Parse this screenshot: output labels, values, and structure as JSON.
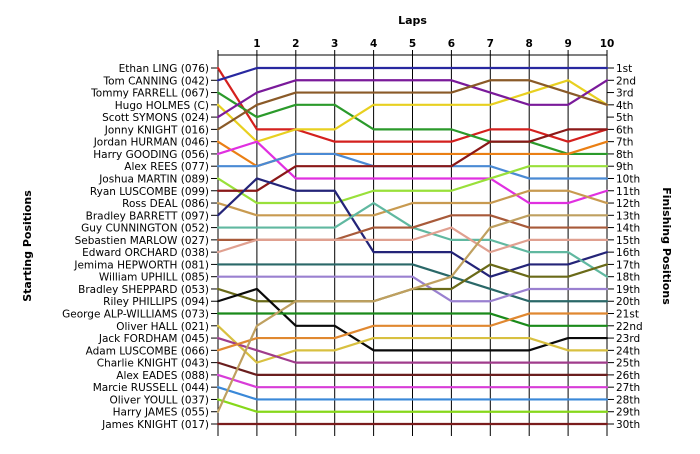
{
  "chart_data": {
    "type": "line",
    "title": "",
    "top_axis_label": "Laps",
    "left_axis_label": "Starting Positions",
    "right_axis_label": "Finishing Positions",
    "laps": [
      0,
      1,
      2,
      3,
      4,
      5,
      6,
      7,
      8,
      9,
      10
    ],
    "lap_tick_labels": [
      "1",
      "2",
      "3",
      "4",
      "5",
      "6",
      "7",
      "8",
      "9",
      "10"
    ],
    "finishing_labels": [
      "1st",
      "2nd",
      "3rd",
      "4th",
      "5th",
      "6th",
      "7th",
      "8th",
      "9th",
      "10th",
      "11th",
      "12th",
      "13th",
      "14th",
      "15th",
      "16th",
      "17th",
      "18th",
      "19th",
      "20th",
      "21st",
      "22nd",
      "23rd",
      "24th",
      "25th",
      "26th",
      "27th",
      "28th",
      "29th",
      "30th"
    ],
    "series": [
      {
        "name": "Ethan LING (076)",
        "color": "#d4201e",
        "positions": [
          1,
          6,
          6,
          7,
          7,
          7,
          7,
          6,
          6,
          7,
          6
        ]
      },
      {
        "name": "Tom CANNING (042)",
        "color": "#2828a0",
        "positions": [
          2,
          1,
          1,
          1,
          1,
          1,
          1,
          1,
          1,
          1,
          1
        ]
      },
      {
        "name": "Tommy FARRELL (067)",
        "color": "#2b9a2b",
        "positions": [
          3,
          5,
          4,
          4,
          6,
          6,
          6,
          7,
          7,
          8,
          8
        ]
      },
      {
        "name": "Hugo HOLMES (C)",
        "color": "#e8d020",
        "positions": [
          4,
          7,
          6,
          6,
          4,
          4,
          4,
          4,
          3,
          2,
          4
        ]
      },
      {
        "name": "Scott SYMONS (024)",
        "color": "#7a1a9a",
        "positions": [
          5,
          3,
          2,
          2,
          2,
          2,
          2,
          3,
          4,
          4,
          2
        ]
      },
      {
        "name": "Jonny KNIGHT (016)",
        "color": "#8a5a28",
        "positions": [
          6,
          4,
          3,
          3,
          3,
          3,
          3,
          2,
          2,
          3,
          4
        ]
      },
      {
        "name": "Jordan HURMAN (046)",
        "color": "#ea7f14",
        "positions": [
          7,
          9,
          8,
          8,
          8,
          8,
          8,
          8,
          8,
          8,
          7
        ]
      },
      {
        "name": "Harry GOODING (056)",
        "color": "#e030e0",
        "positions": [
          8,
          7,
          10,
          10,
          10,
          10,
          10,
          10,
          12,
          12,
          11
        ]
      },
      {
        "name": "Alex REES (077)",
        "color": "#4a8ad4",
        "positions": [
          9,
          9,
          8,
          8,
          9,
          9,
          9,
          9,
          10,
          10,
          10
        ]
      },
      {
        "name": "Joshua MARTIN (089)",
        "color": "#99e03a",
        "positions": [
          10,
          12,
          12,
          12,
          11,
          11,
          11,
          10,
          9,
          9,
          9
        ]
      },
      {
        "name": "Ryan LUSCOMBE (099)",
        "color": "#8a1818",
        "positions": [
          11,
          11,
          9,
          9,
          9,
          9,
          9,
          7,
          7,
          6,
          6
        ]
      },
      {
        "name": "Ross DEAL (086)",
        "color": "#c89a50",
        "positions": [
          12,
          13,
          13,
          13,
          13,
          12,
          12,
          12,
          11,
          11,
          12
        ]
      },
      {
        "name": "Bradley BARRETT (097)",
        "color": "#242478",
        "positions": [
          13,
          10,
          11,
          11,
          16,
          16,
          16,
          18,
          17,
          17,
          16
        ]
      },
      {
        "name": "Guy CUNNINGTON (052)",
        "color": "#60b8a0",
        "positions": [
          14,
          14,
          14,
          14,
          12,
          14,
          15,
          15,
          16,
          16,
          18
        ]
      },
      {
        "name": "Sebastien MARLOW (027)",
        "color": "#a85a3a",
        "positions": [
          15,
          15,
          15,
          15,
          14,
          14,
          13,
          13,
          14,
          14,
          14
        ]
      },
      {
        "name": "Edward ORCHARD (038)",
        "color": "#e0a090",
        "positions": [
          16,
          15,
          15,
          15,
          15,
          15,
          14,
          16,
          15,
          15,
          15
        ]
      },
      {
        "name": "Jemima HEPWORTH (081)",
        "color": "#2a6868",
        "positions": [
          17,
          17,
          17,
          17,
          17,
          17,
          18,
          19,
          20,
          20,
          20
        ]
      },
      {
        "name": "William UPHILL (085)",
        "color": "#9a80d0",
        "positions": [
          18,
          18,
          18,
          18,
          18,
          18,
          20,
          20,
          19,
          19,
          19
        ]
      },
      {
        "name": "Bradley SHEPPARD (053)",
        "color": "#6a6a18",
        "positions": [
          19,
          20,
          20,
          20,
          20,
          19,
          19,
          17,
          18,
          18,
          17
        ]
      },
      {
        "name": "Riley PHILLIPS (094)",
        "color": "#0a0a0a",
        "positions": [
          20,
          19,
          22,
          22,
          24,
          24,
          24,
          24,
          24,
          23,
          23
        ]
      },
      {
        "name": "George ALP-WILLIAMS (073)",
        "color": "#1a8a1a",
        "positions": [
          21,
          21,
          21,
          21,
          21,
          21,
          21,
          21,
          22,
          22,
          22
        ]
      },
      {
        "name": "Oliver HALL (021)",
        "color": "#d8c040",
        "positions": [
          22,
          25,
          24,
          24,
          23,
          23,
          23,
          23,
          23,
          24,
          24
        ]
      },
      {
        "name": "Jack FORDHAM (045)",
        "color": "#a03c8c",
        "positions": [
          23,
          24,
          25,
          25,
          25,
          25,
          25,
          25,
          25,
          25,
          25
        ]
      },
      {
        "name": "Adam LUSCOMBE (066)",
        "color": "#e08830",
        "positions": [
          24,
          23,
          23,
          23,
          22,
          22,
          22,
          22,
          21,
          21,
          21
        ]
      },
      {
        "name": "Charlie KNIGHT (043)",
        "color": "#6a1e1e",
        "positions": [
          25,
          26,
          26,
          26,
          26,
          26,
          26,
          26,
          26,
          26,
          26
        ]
      },
      {
        "name": "Alex EADES (088)",
        "color": "#d83cd8",
        "positions": [
          26,
          27,
          27,
          27,
          27,
          27,
          27,
          27,
          27,
          27,
          27
        ]
      },
      {
        "name": "Marcie RUSSELL (044)",
        "color": "#3a88d8",
        "positions": [
          27,
          28,
          28,
          28,
          28,
          28,
          28,
          28,
          28,
          28,
          28
        ]
      },
      {
        "name": "Oliver YOULL (037)",
        "color": "#86d81a",
        "positions": [
          28,
          29,
          29,
          29,
          29,
          29,
          29,
          29,
          29,
          29,
          29
        ]
      },
      {
        "name": "Harry JAMES (055)",
        "color": "#bfa060",
        "positions": [
          29,
          22,
          20,
          20,
          20,
          19,
          18,
          14,
          13,
          13,
          13
        ]
      },
      {
        "name": "James KNIGHT (017)",
        "color": "#7a1c1c",
        "positions": [
          30,
          30,
          30,
          30,
          30,
          30,
          30,
          30,
          30,
          30,
          30
        ]
      }
    ]
  }
}
